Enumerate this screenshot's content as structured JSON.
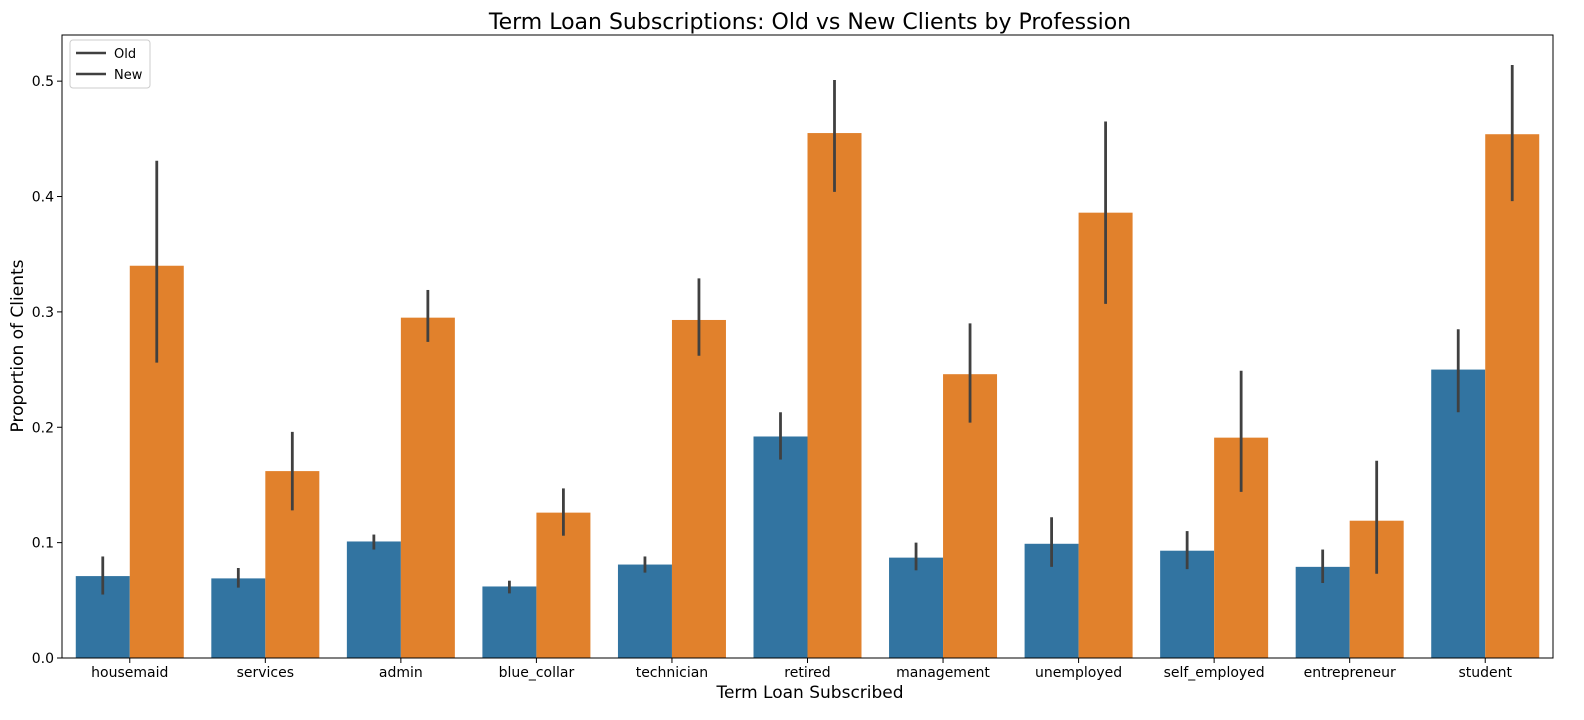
{
  "chart_data": {
    "type": "bar",
    "title": "Term Loan Subscriptions: Old vs New Clients by Profession",
    "xlabel": "Term Loan Subscribed",
    "ylabel": "Proportion of Clients",
    "categories": [
      "housemaid",
      "services",
      "admin",
      "blue_collar",
      "technician",
      "retired",
      "management",
      "unemployed",
      "self_employed",
      "entrepreneur",
      "student"
    ],
    "series": [
      {
        "name": "Old",
        "color": "#3274a1",
        "values": [
          0.071,
          0.069,
          0.101,
          0.062,
          0.081,
          0.192,
          0.087,
          0.099,
          0.093,
          0.079,
          0.25
        ],
        "ci_low": [
          0.055,
          0.061,
          0.094,
          0.056,
          0.074,
          0.172,
          0.076,
          0.079,
          0.077,
          0.065,
          0.213
        ],
        "ci_high": [
          0.088,
          0.078,
          0.107,
          0.067,
          0.088,
          0.213,
          0.1,
          0.122,
          0.11,
          0.094,
          0.285
        ]
      },
      {
        "name": "New",
        "color": "#e1812c",
        "values": [
          0.34,
          0.162,
          0.295,
          0.126,
          0.293,
          0.455,
          0.246,
          0.386,
          0.191,
          0.119,
          0.454
        ],
        "ci_low": [
          0.256,
          0.128,
          0.274,
          0.106,
          0.262,
          0.404,
          0.204,
          0.307,
          0.144,
          0.073,
          0.396
        ],
        "ci_high": [
          0.431,
          0.196,
          0.319,
          0.147,
          0.329,
          0.501,
          0.29,
          0.465,
          0.249,
          0.171,
          0.514
        ]
      }
    ],
    "ylim": [
      0.0,
      0.54
    ],
    "yticks": [
      "0.0",
      "0.1",
      "0.2",
      "0.3",
      "0.4",
      "0.5"
    ],
    "ytick_values": [
      0.0,
      0.1,
      0.2,
      0.3,
      0.4,
      0.5
    ],
    "errorbar_color": "#404040",
    "legend": {
      "position": "top-left",
      "entries": [
        "Old",
        "New"
      ]
    },
    "grid": false
  }
}
